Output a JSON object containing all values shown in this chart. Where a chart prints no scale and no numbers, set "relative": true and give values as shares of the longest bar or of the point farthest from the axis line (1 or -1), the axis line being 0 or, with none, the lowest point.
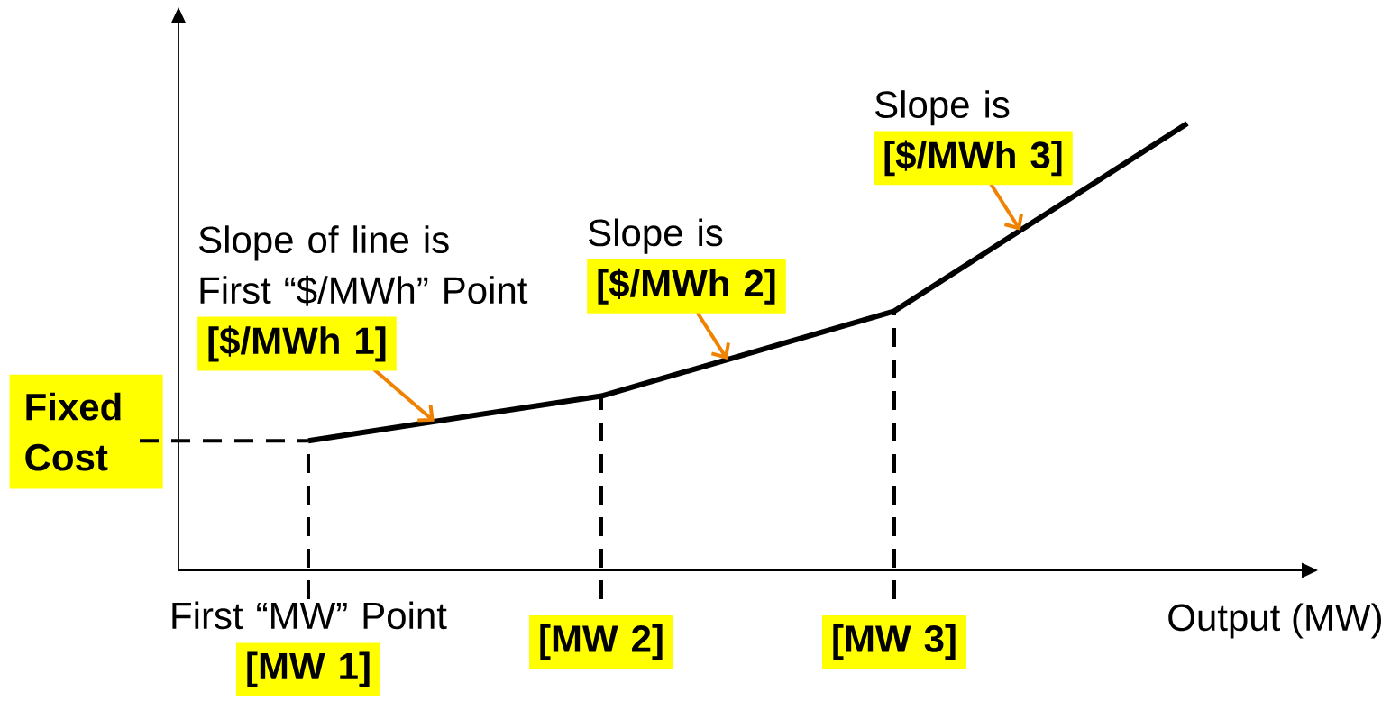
{
  "chart_data": {
    "type": "line",
    "relative": true,
    "categories": [
      "First “MW” Point **[MW 1]**",
      "**[MW 2]**",
      "**[MW 3]**",
      null
    ],
    "series": [
      {
        "color": "#000000",
        "values": [
          0.29,
          0.39,
          0.58,
          1
        ]
      }
    ],
    "xlabel": "Output (MW)",
    "ref_lines": [
      {
        "axis": "y",
        "value": 0.29,
        "label": "Fixed Cost",
        "color": "#000000",
        "line_style": "dashed"
      },
      {
        "axis": "x",
        "value": "First “MW” Point **[MW 1]**",
        "color": "#000000",
        "line_style": "dashed"
      },
      {
        "axis": "x",
        "value": "**[MW 2]**",
        "color": "#000000",
        "line_style": "dashed"
      },
      {
        "axis": "x",
        "value": "**[MW 3]**",
        "color": "#000000",
        "line_style": "dashed"
      }
    ],
    "annotations": [
      "Slope of line is First “$/MWh” Point **[$/MWh 1]**",
      "Slope is **[$/MWh 2]**",
      "Slope is **[$/MWh 3]**"
    ],
    "marker": "none",
    "line_style": "solid"
  }
}
